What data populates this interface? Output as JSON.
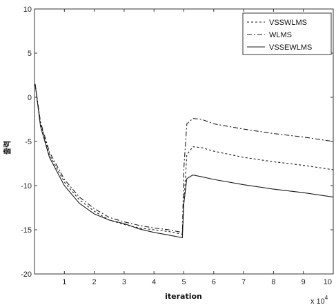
{
  "chart_data": {
    "type": "line",
    "title": "",
    "xlabel": "iteration",
    "ylabel": "출력",
    "x_multiplier_label": "x 10",
    "x_multiplier_exponent": "4",
    "xlim": [
      0,
      10
    ],
    "ylim": [
      -20,
      10
    ],
    "x_ticks": [
      1,
      2,
      3,
      4,
      5,
      6,
      7,
      8,
      9,
      10
    ],
    "x_tick_labels": [
      "1",
      "2",
      "3",
      "4",
      "5",
      "6",
      "7",
      "8",
      "9",
      "10"
    ],
    "y_ticks": [
      10,
      5,
      0,
      -5,
      -10,
      -15,
      -20
    ],
    "y_tick_labels": [
      "10",
      "5",
      "0",
      "-5",
      "-10",
      "-15",
      "-20"
    ],
    "grid": false,
    "legend_position": "top-right",
    "series": [
      {
        "name": "VSSWLMS",
        "style": "dotted",
        "x": [
          0.02,
          0.2,
          0.5,
          1,
          1.5,
          2,
          2.5,
          3,
          3.5,
          4,
          4.5,
          4.95,
          5.0,
          5.1,
          5.3,
          5.6,
          6,
          7,
          8,
          9,
          10
        ],
        "y": [
          1.5,
          -3,
          -6.5,
          -9.6,
          -11.6,
          -12.9,
          -13.9,
          -14.4,
          -14.8,
          -15.0,
          -15.2,
          -15.5,
          -12.0,
          -6.5,
          -5.6,
          -5.7,
          -6.1,
          -6.8,
          -7.3,
          -7.7,
          -8.2
        ]
      },
      {
        "name": "WLMS",
        "style": "dashdot",
        "x": [
          0.02,
          0.2,
          0.5,
          1,
          1.5,
          2,
          2.5,
          3,
          3.5,
          4,
          4.5,
          4.95,
          5.0,
          5.1,
          5.3,
          5.6,
          6,
          7,
          8,
          9,
          10
        ],
        "y": [
          1.5,
          -2.8,
          -6.2,
          -9.3,
          -11.3,
          -12.6,
          -13.6,
          -14.1,
          -14.5,
          -14.8,
          -15.0,
          -15.3,
          -8.0,
          -3.0,
          -2.4,
          -2.5,
          -3.0,
          -3.6,
          -4.1,
          -4.5,
          -5.0
        ]
      },
      {
        "name": "VSSEWLMS",
        "style": "solid",
        "x": [
          0.02,
          0.2,
          0.5,
          1,
          1.5,
          2,
          2.5,
          3,
          3.5,
          4,
          4.5,
          4.95,
          5.0,
          5.1,
          5.3,
          5.6,
          6,
          7,
          8,
          9,
          10
        ],
        "y": [
          1.5,
          -3.3,
          -6.8,
          -10.0,
          -12.0,
          -13.2,
          -13.9,
          -14.3,
          -14.9,
          -15.3,
          -15.6,
          -15.9,
          -12.0,
          -9.2,
          -8.8,
          -9.0,
          -9.3,
          -9.9,
          -10.4,
          -10.8,
          -11.3
        ]
      }
    ]
  }
}
